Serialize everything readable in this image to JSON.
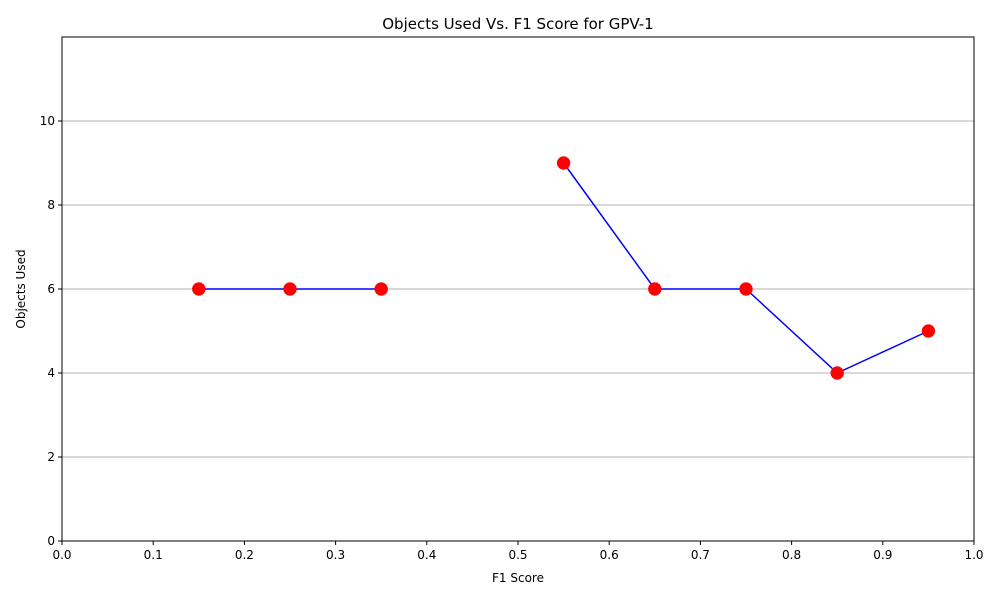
{
  "chart_data": {
    "type": "line",
    "title": "Objects Used Vs. F1 Score for GPV-1",
    "xlabel": "F1 Score",
    "ylabel": "Objects Used",
    "xlim": [
      0.0,
      1.0
    ],
    "ylim": [
      0,
      12
    ],
    "x_ticks": [
      "0.0",
      "0.1",
      "0.2",
      "0.3",
      "0.4",
      "0.5",
      "0.6",
      "0.7",
      "0.8",
      "0.9",
      "1.0"
    ],
    "y_ticks": [
      "0",
      "2",
      "4",
      "6",
      "8",
      "10"
    ],
    "grid": "horizontal",
    "series": [
      {
        "segments": [
          [
            {
              "x": 0.15,
              "y": 6
            },
            {
              "x": 0.25,
              "y": 6
            },
            {
              "x": 0.35,
              "y": 6
            }
          ],
          [
            {
              "x": 0.55,
              "y": 9
            },
            {
              "x": 0.65,
              "y": 6
            },
            {
              "x": 0.75,
              "y": 6
            },
            {
              "x": 0.85,
              "y": 4
            },
            {
              "x": 0.95,
              "y": 5
            }
          ]
        ],
        "line_color": "#0000ff",
        "marker_color": "#ff0000"
      }
    ]
  }
}
